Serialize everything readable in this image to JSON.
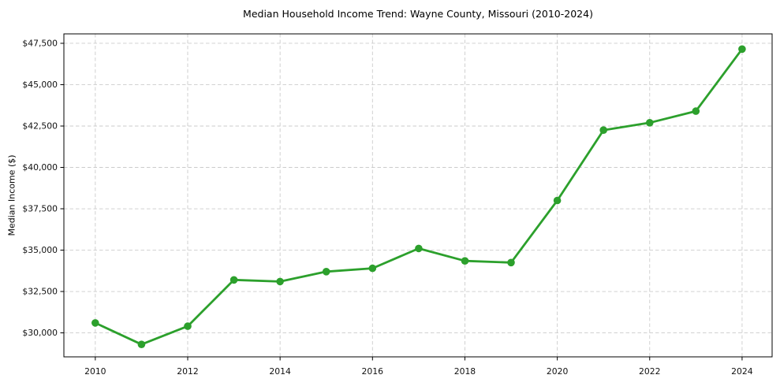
{
  "chart_data": {
    "type": "line",
    "title": "Median Household Income Trend: Wayne County, Missouri (2010-2024)",
    "ylabel": "Median Income ($)",
    "xlabel": "",
    "series_name": "Median household income",
    "x": [
      2010,
      2011,
      2012,
      2013,
      2014,
      2015,
      2016,
      2017,
      2018,
      2019,
      2020,
      2021,
      2022,
      2023,
      2024
    ],
    "values": [
      30600,
      29300,
      30400,
      33200,
      33100,
      33700,
      33900,
      35100,
      34350,
      34250,
      38000,
      42250,
      42700,
      43400,
      47150
    ],
    "xticks": [
      2010,
      2012,
      2014,
      2016,
      2018,
      2020,
      2022,
      2024
    ],
    "xtick_labels": [
      "2010",
      "2012",
      "2014",
      "2016",
      "2018",
      "2020",
      "2022",
      "2024"
    ],
    "yticks": [
      30000,
      32500,
      35000,
      37500,
      40000,
      42500,
      45000,
      47500
    ],
    "ytick_labels": [
      "$30,000",
      "$32,500",
      "$35,000",
      "$37,500",
      "$40,000",
      "$42,500",
      "$45,000",
      "$47,500"
    ],
    "xlim": [
      2009.32,
      2024.65
    ],
    "ylim": [
      28550,
      48070
    ],
    "grid": "dashed, both axes, at ticks only",
    "legend": "none",
    "line_color": "#2ca02c",
    "marker": "circle",
    "marker_color": "#2ca02c",
    "grid_color": "#cbcbcb",
    "spine_color": "#000000",
    "background_color": "#ffffff"
  }
}
